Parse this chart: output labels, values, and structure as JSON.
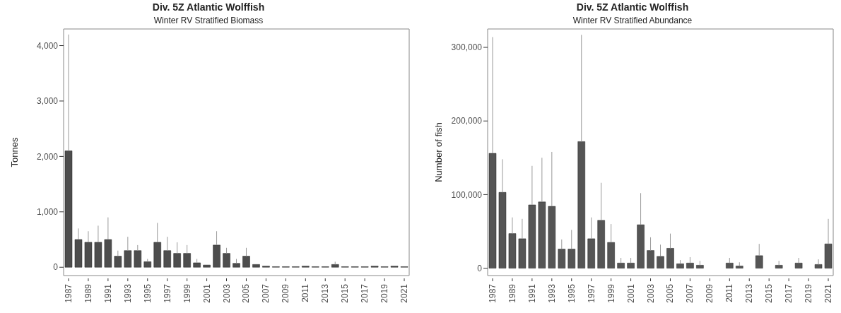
{
  "chart_data": [
    {
      "type": "bar",
      "title": "Div. 5Z Atlantic Wolffish",
      "subtitle": "Winter RV Stratified Biomass",
      "ylabel": "Tonnes",
      "categories": [
        "1987",
        null,
        "1989",
        null,
        "1991",
        null,
        "1993",
        null,
        "1995",
        null,
        "1997",
        null,
        "1999",
        null,
        "2001",
        null,
        "2003",
        null,
        "2005",
        null,
        "2007",
        null,
        "2009",
        null,
        "2011",
        null,
        "2013",
        null,
        "2015",
        null,
        "2017",
        null,
        "2019",
        null,
        "2021"
      ],
      "values": [
        2100,
        500,
        450,
        450,
        500,
        200,
        300,
        300,
        100,
        450,
        300,
        250,
        250,
        80,
        40,
        400,
        250,
        70,
        200,
        50,
        20,
        10,
        10,
        10,
        20,
        10,
        10,
        50,
        10,
        10,
        10,
        20,
        10,
        20,
        10
      ],
      "errors": [
        [
          2100,
          4200
        ],
        [
          500,
          700
        ],
        [
          450,
          650
        ],
        [
          450,
          750
        ],
        [
          500,
          900
        ],
        [
          200,
          300
        ],
        [
          300,
          550
        ],
        [
          300,
          400
        ],
        [
          100,
          150
        ],
        [
          450,
          800
        ],
        [
          300,
          550
        ],
        [
          250,
          450
        ],
        [
          250,
          400
        ],
        [
          80,
          150
        ],
        null,
        [
          400,
          650
        ],
        [
          250,
          350
        ],
        [
          70,
          150
        ],
        [
          200,
          350
        ],
        null,
        null,
        null,
        null,
        null,
        null,
        null,
        null,
        [
          50,
          100
        ],
        null,
        null,
        null,
        null,
        null,
        null,
        null
      ],
      "color": "#4d4d4d",
      "ylim": [
        -150,
        4300
      ],
      "yticks": [
        0,
        {
          "value": 1000,
          "label": "1,000"
        },
        {
          "value": 2000,
          "label": "2,000"
        },
        {
          "value": 3000,
          "label": "3,000"
        },
        {
          "value": 4000,
          "label": "4,000"
        }
      ],
      "grid": false,
      "legend": false
    },
    {
      "type": "bar",
      "title": "Div. 5Z Atlantic Wolffish",
      "subtitle": "Winter RV Stratified Abundance",
      "ylabel": "Number of fish",
      "categories": [
        "1987",
        null,
        "1989",
        null,
        "1991",
        null,
        "1993",
        null,
        "1995",
        null,
        "1997",
        null,
        "1999",
        null,
        "2001",
        null,
        "2003",
        null,
        "2005",
        null,
        "2007",
        null,
        "2009",
        null,
        "2011",
        null,
        "2013",
        null,
        "2015",
        null,
        "2017",
        null,
        "2019",
        null,
        "2021"
      ],
      "values": [
        156000,
        103000,
        47000,
        40000,
        86000,
        90000,
        84000,
        26000,
        26000,
        172000,
        40000,
        65000,
        35000,
        7000,
        7000,
        59000,
        24000,
        16000,
        27000,
        6000,
        7000,
        4000,
        0,
        0,
        7000,
        3000,
        0,
        17000,
        0,
        4000,
        0,
        7000,
        0,
        5000,
        33000
      ],
      "errors": [
        [
          156000,
          314000
        ],
        [
          103000,
          148000
        ],
        [
          47000,
          69000
        ],
        [
          40000,
          67000
        ],
        [
          86000,
          139000
        ],
        [
          90000,
          150000
        ],
        [
          84000,
          158000
        ],
        [
          26000,
          39000
        ],
        [
          26000,
          52000
        ],
        [
          172000,
          317000
        ],
        [
          40000,
          69000
        ],
        [
          65000,
          116000
        ],
        [
          35000,
          60000
        ],
        [
          7000,
          14000
        ],
        [
          7000,
          14000
        ],
        [
          59000,
          102000
        ],
        [
          24000,
          42000
        ],
        [
          16000,
          32000
        ],
        [
          27000,
          47000
        ],
        [
          6000,
          11000
        ],
        [
          7000,
          15000
        ],
        [
          4000,
          10000
        ],
        null,
        null,
        [
          7000,
          14000
        ],
        [
          3000,
          8000
        ],
        null,
        [
          17000,
          33000
        ],
        null,
        [
          4000,
          10000
        ],
        null,
        [
          7000,
          14000
        ],
        null,
        [
          5000,
          12000
        ],
        [
          33000,
          67000
        ]
      ],
      "color": "#555555",
      "ylim": [
        -10000,
        325000
      ],
      "yticks": [
        0,
        {
          "value": 100000,
          "label": "100,000"
        },
        {
          "value": 200000,
          "label": "200,000"
        },
        {
          "value": 300000,
          "label": "300,000"
        }
      ],
      "grid": false,
      "legend": false
    }
  ]
}
